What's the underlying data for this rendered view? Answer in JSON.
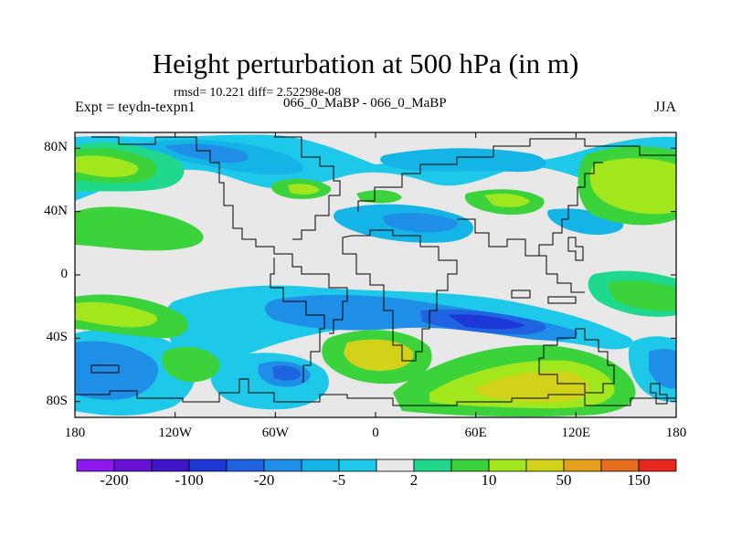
{
  "title": "Height perturbation at 500 hPa (in m)",
  "stats": "rmsd= 10.221  diff= 2.52298e-08",
  "expt": "Expt = teydn-texpn1",
  "case": "066_0_MaBP - 066_0_MaBP",
  "season": "JJA",
  "y_ticks": [
    {
      "label": "80N",
      "lat": 80
    },
    {
      "label": "40N",
      "lat": 40
    },
    {
      "label": "0",
      "lat": 0
    },
    {
      "label": "40S",
      "lat": -40
    },
    {
      "label": "80S",
      "lat": -80
    }
  ],
  "x_ticks": [
    {
      "label": "180",
      "lon": -180
    },
    {
      "label": "120W",
      "lon": -120
    },
    {
      "label": "60W",
      "lon": -60
    },
    {
      "label": "0",
      "lon": 0
    },
    {
      "label": "60E",
      "lon": 60
    },
    {
      "label": "120E",
      "lon": 120
    },
    {
      "label": "180",
      "lon": 180
    }
  ],
  "colorbar": {
    "colors": [
      "#8c1aee",
      "#6a11d6",
      "#4014c8",
      "#1d38d6",
      "#1f63e0",
      "#1e8ee6",
      "#15b4e6",
      "#1ec8e8",
      "#e8e8e8",
      "#1fd88c",
      "#3cd23c",
      "#a2e61e",
      "#d2d21a",
      "#e6a01e",
      "#e66e1e",
      "#e6281e"
    ],
    "labels": [
      {
        "text": "-200",
        "boundary": 1
      },
      {
        "text": "-100",
        "boundary": 3
      },
      {
        "text": "-20",
        "boundary": 5
      },
      {
        "text": "-5",
        "boundary": 7
      },
      {
        "text": "2",
        "boundary": 9
      },
      {
        "text": "10",
        "boundary": 11
      },
      {
        "text": "50",
        "boundary": 13
      },
      {
        "text": "150",
        "boundary": 15
      }
    ]
  },
  "colors": {
    "near_zero": "#e8e8e8",
    "light_blue": "#1ec8e8",
    "cyan_blue": "#15b4e6",
    "mid_blue": "#1e8ee6",
    "dark_blue": "#1f63e0",
    "deep_blue": "#1d38d6",
    "teal_green": "#1fd88c",
    "green": "#3cd23c",
    "yellow_green": "#a2e61e",
    "olive": "#d2d21a",
    "orange": "#e6a01e",
    "coast": "#000000"
  }
}
